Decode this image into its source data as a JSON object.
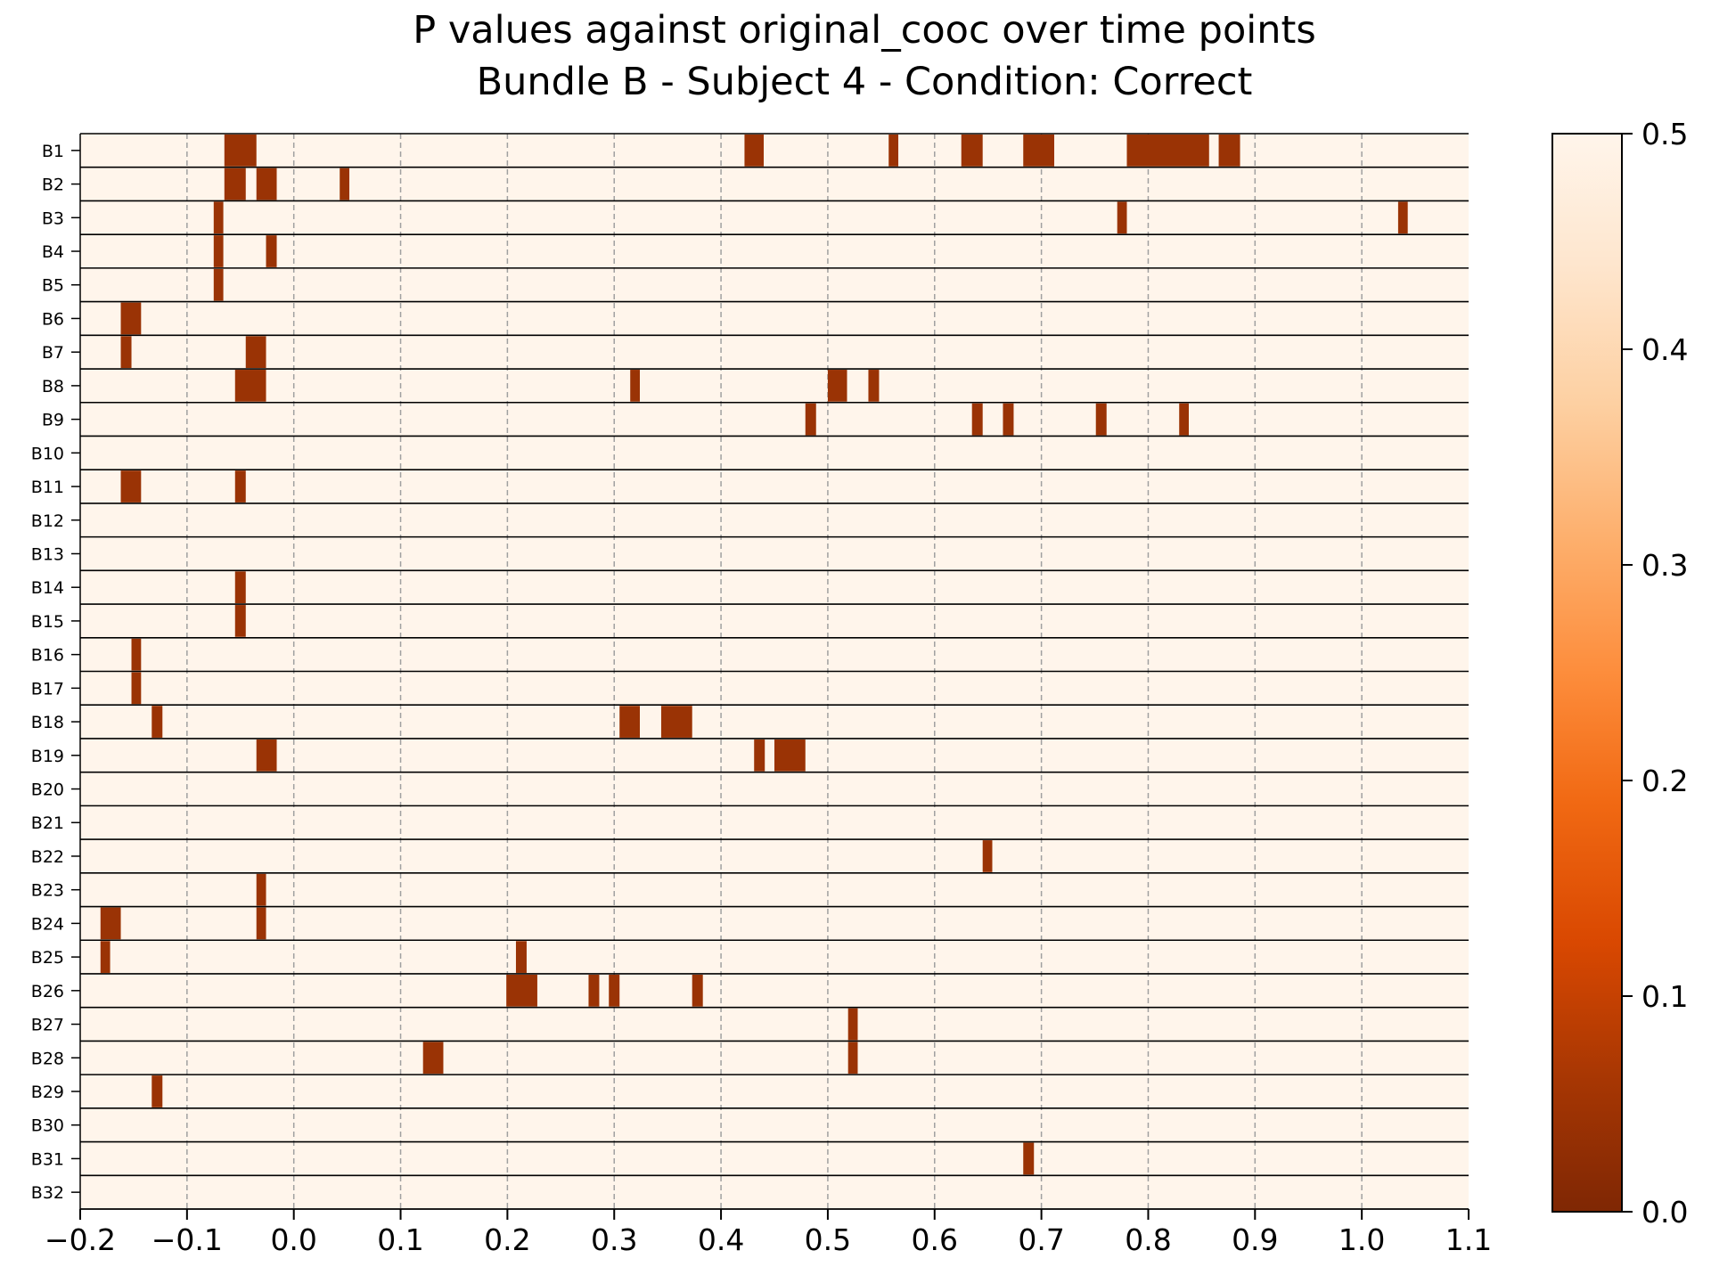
{
  "chart_data": {
    "type": "heatmap",
    "title": "P values against original_cooc over time points",
    "subtitle": "Bundle B - Subject 4 - Condition: Correct",
    "xlabel": "",
    "ylabel": "",
    "xlim": [
      -0.2,
      1.1
    ],
    "x_ticks": [
      "−0.2",
      "−0.1",
      "0.0",
      "0.1",
      "0.2",
      "0.3",
      "0.4",
      "0.5",
      "0.6",
      "0.7",
      "0.8",
      "0.9",
      "1.0",
      "1.1"
    ],
    "x_tick_values": [
      -0.2,
      -0.1,
      0.0,
      0.1,
      0.2,
      0.3,
      0.4,
      0.5,
      0.6,
      0.7,
      0.8,
      0.9,
      1.0,
      1.1
    ],
    "grid": "vertical dashed",
    "rows": [
      "B1",
      "B2",
      "B3",
      "B4",
      "B5",
      "B6",
      "B7",
      "B8",
      "B9",
      "B10",
      "B11",
      "B12",
      "B13",
      "B14",
      "B15",
      "B16",
      "B17",
      "B18",
      "B19",
      "B20",
      "B21",
      "B22",
      "B23",
      "B24",
      "B25",
      "B26",
      "B27",
      "B28",
      "B29",
      "B30",
      "B31",
      "B32"
    ],
    "background_value": 0.5,
    "colorbar": {
      "range": [
        0.0,
        0.5
      ],
      "ticks": [
        "0.0",
        "0.1",
        "0.2",
        "0.3",
        "0.4",
        "0.5"
      ],
      "tick_values": [
        0.0,
        0.1,
        0.2,
        0.3,
        0.4,
        0.5
      ],
      "colormap": "Oranges_r",
      "color_low": "#7f2704",
      "color_high": "#fff5eb"
    },
    "significant_cells": [
      {
        "row": "B1",
        "intervals": [
          [
            -0.065,
            -0.035
          ],
          [
            0.422,
            0.44
          ],
          [
            0.557,
            0.566
          ],
          [
            0.625,
            0.645
          ],
          [
            0.683,
            0.712
          ],
          [
            0.78,
            0.857
          ],
          [
            0.866,
            0.886
          ]
        ]
      },
      {
        "row": "B2",
        "intervals": [
          [
            -0.065,
            -0.045
          ],
          [
            -0.035,
            -0.016
          ],
          [
            0.043,
            0.052
          ]
        ]
      },
      {
        "row": "B3",
        "intervals": [
          [
            -0.075,
            -0.066
          ],
          [
            0.771,
            0.78
          ],
          [
            1.034,
            1.043
          ]
        ]
      },
      {
        "row": "B4",
        "intervals": [
          [
            -0.075,
            -0.066
          ],
          [
            -0.026,
            -0.016
          ]
        ]
      },
      {
        "row": "B5",
        "intervals": [
          [
            -0.075,
            -0.066
          ]
        ]
      },
      {
        "row": "B6",
        "intervals": [
          [
            -0.162,
            -0.143
          ]
        ]
      },
      {
        "row": "B7",
        "intervals": [
          [
            -0.162,
            -0.152
          ],
          [
            -0.045,
            -0.026
          ]
        ]
      },
      {
        "row": "B8",
        "intervals": [
          [
            -0.055,
            -0.026
          ],
          [
            0.315,
            0.324
          ],
          [
            0.5,
            0.518
          ],
          [
            0.538,
            0.548
          ]
        ]
      },
      {
        "row": "B9",
        "intervals": [
          [
            0.479,
            0.489
          ],
          [
            0.635,
            0.645
          ],
          [
            0.664,
            0.674
          ],
          [
            0.751,
            0.761
          ],
          [
            0.829,
            0.838
          ]
        ]
      },
      {
        "row": "B10",
        "intervals": []
      },
      {
        "row": "B11",
        "intervals": [
          [
            -0.162,
            -0.143
          ],
          [
            -0.055,
            -0.045
          ]
        ]
      },
      {
        "row": "B12",
        "intervals": []
      },
      {
        "row": "B13",
        "intervals": []
      },
      {
        "row": "B14",
        "intervals": [
          [
            -0.055,
            -0.045
          ]
        ]
      },
      {
        "row": "B15",
        "intervals": [
          [
            -0.055,
            -0.045
          ]
        ]
      },
      {
        "row": "B16",
        "intervals": [
          [
            -0.152,
            -0.143
          ]
        ]
      },
      {
        "row": "B17",
        "intervals": [
          [
            -0.152,
            -0.143
          ]
        ]
      },
      {
        "row": "B18",
        "intervals": [
          [
            -0.133,
            -0.123
          ],
          [
            0.305,
            0.324
          ],
          [
            0.344,
            0.373
          ]
        ]
      },
      {
        "row": "B19",
        "intervals": [
          [
            -0.035,
            -0.016
          ],
          [
            0.431,
            0.441
          ],
          [
            0.45,
            0.479
          ]
        ]
      },
      {
        "row": "B20",
        "intervals": []
      },
      {
        "row": "B21",
        "intervals": []
      },
      {
        "row": "B22",
        "intervals": [
          [
            0.645,
            0.654
          ]
        ]
      },
      {
        "row": "B23",
        "intervals": [
          [
            -0.035,
            -0.026
          ]
        ]
      },
      {
        "row": "B24",
        "intervals": [
          [
            -0.181,
            -0.162
          ],
          [
            -0.035,
            -0.026
          ]
        ]
      },
      {
        "row": "B25",
        "intervals": [
          [
            -0.181,
            -0.172
          ],
          [
            0.208,
            0.218
          ]
        ]
      },
      {
        "row": "B26",
        "intervals": [
          [
            0.199,
            0.228
          ],
          [
            0.276,
            0.286
          ],
          [
            0.295,
            0.305
          ],
          [
            0.373,
            0.383
          ]
        ]
      },
      {
        "row": "B27",
        "intervals": [
          [
            0.519,
            0.528
          ]
        ]
      },
      {
        "row": "B28",
        "intervals": [
          [
            0.121,
            0.14
          ],
          [
            0.519,
            0.528
          ]
        ]
      },
      {
        "row": "B29",
        "intervals": [
          [
            -0.133,
            -0.123
          ]
        ]
      },
      {
        "row": "B30",
        "intervals": []
      },
      {
        "row": "B31",
        "intervals": [
          [
            0.683,
            0.693
          ]
        ]
      },
      {
        "row": "B32",
        "intervals": []
      }
    ]
  }
}
